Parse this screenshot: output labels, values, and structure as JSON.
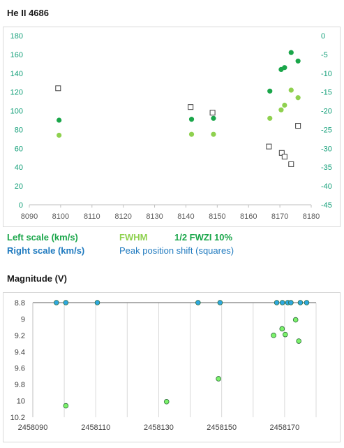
{
  "colors": {
    "green_dark": "#1aa64a",
    "green_light": "#8fd14f",
    "blue": "#1f7abf",
    "teal_axis": "#15a07a",
    "mag_dot_blue": "#2ea8e0",
    "mag_dot_green": "#7cf26a"
  },
  "chart1": {
    "title": "He II 4686",
    "legend": {
      "left_scale": "Left scale (km/s)",
      "right_scale": "Right scale (km/s)",
      "fwhm": "FWHM",
      "fwzi": "1/2 FWZI 10%",
      "peak": "Peak position shift (squares)"
    }
  },
  "chart2": {
    "title": "Magnitude (V)"
  },
  "chart_data": [
    {
      "type": "scatter",
      "title": "He II 4686",
      "x_ticks": [
        8090,
        8100,
        8110,
        8120,
        8130,
        8140,
        8150,
        8160,
        8170,
        8180
      ],
      "xlim": [
        8090,
        8180
      ],
      "ylim_left": [
        0,
        180
      ],
      "y_ticks_left": [
        0,
        20,
        40,
        60,
        80,
        100,
        120,
        140,
        160,
        180
      ],
      "ylim_right": [
        -45,
        0
      ],
      "y_ticks_right": [
        0,
        -5,
        -10,
        -15,
        -20,
        -25,
        -30,
        -35,
        -40,
        -45
      ],
      "grid": false,
      "series": [
        {
          "name": "1/2 FWZI 10%",
          "axis": "left",
          "marker": "circle",
          "x": [
            8099.5,
            8141.8,
            8148.8,
            8166.8,
            8170.4,
            8171.5,
            8173.6,
            8175.8
          ],
          "y": [
            90,
            91,
            92,
            121,
            144,
            146,
            162,
            153
          ]
        },
        {
          "name": "FWHM",
          "axis": "left",
          "marker": "circle",
          "x": [
            8099.5,
            8141.8,
            8148.8,
            8166.8,
            8170.4,
            8171.5,
            8173.6,
            8175.8
          ],
          "y": [
            74,
            75,
            75,
            92,
            101,
            106,
            122,
            114
          ]
        },
        {
          "name": "Peak position shift (squares)",
          "axis": "right",
          "marker": "square",
          "x": [
            8099.2,
            8141.5,
            8148.5,
            8166.5,
            8170.6,
            8171.5,
            8173.6,
            8175.8
          ],
          "y": [
            -14,
            -19,
            -20.5,
            -29.5,
            -31.2,
            -32.2,
            -34.2,
            -24
          ]
        }
      ]
    },
    {
      "type": "scatter",
      "title": "Magnitude (V)",
      "x_ticks": [
        2458090,
        2458110,
        2458130,
        2458150,
        2458170
      ],
      "xlim": [
        2458090,
        2458180
      ],
      "ylim": [
        8.8,
        10.2
      ],
      "y_inverted": true,
      "y_ticks": [
        8.8,
        9,
        9.2,
        9.4,
        9.6,
        9.8,
        10,
        10.2
      ],
      "grid": "vertical",
      "series": [
        {
          "marker": "circle",
          "x": [
            2458097.5,
            2458100.5,
            2458110.5,
            2458142.5,
            2458149.5,
            2458167.5,
            2458169.3,
            2458171,
            2458172,
            2458175,
            2458177
          ],
          "y": [
            8.8,
            8.8,
            8.8,
            8.8,
            8.8,
            8.8,
            8.8,
            8.8,
            8.8,
            8.8,
            8.8
          ]
        },
        {
          "marker": "circle",
          "x": [
            2458100.5,
            2458132.5,
            2458149,
            2458166.5,
            2458169.2,
            2458170.2,
            2458173.5,
            2458174.5
          ],
          "y": [
            10.06,
            10.01,
            9.73,
            9.2,
            9.12,
            9.19,
            9.01,
            9.27
          ]
        }
      ]
    }
  ]
}
